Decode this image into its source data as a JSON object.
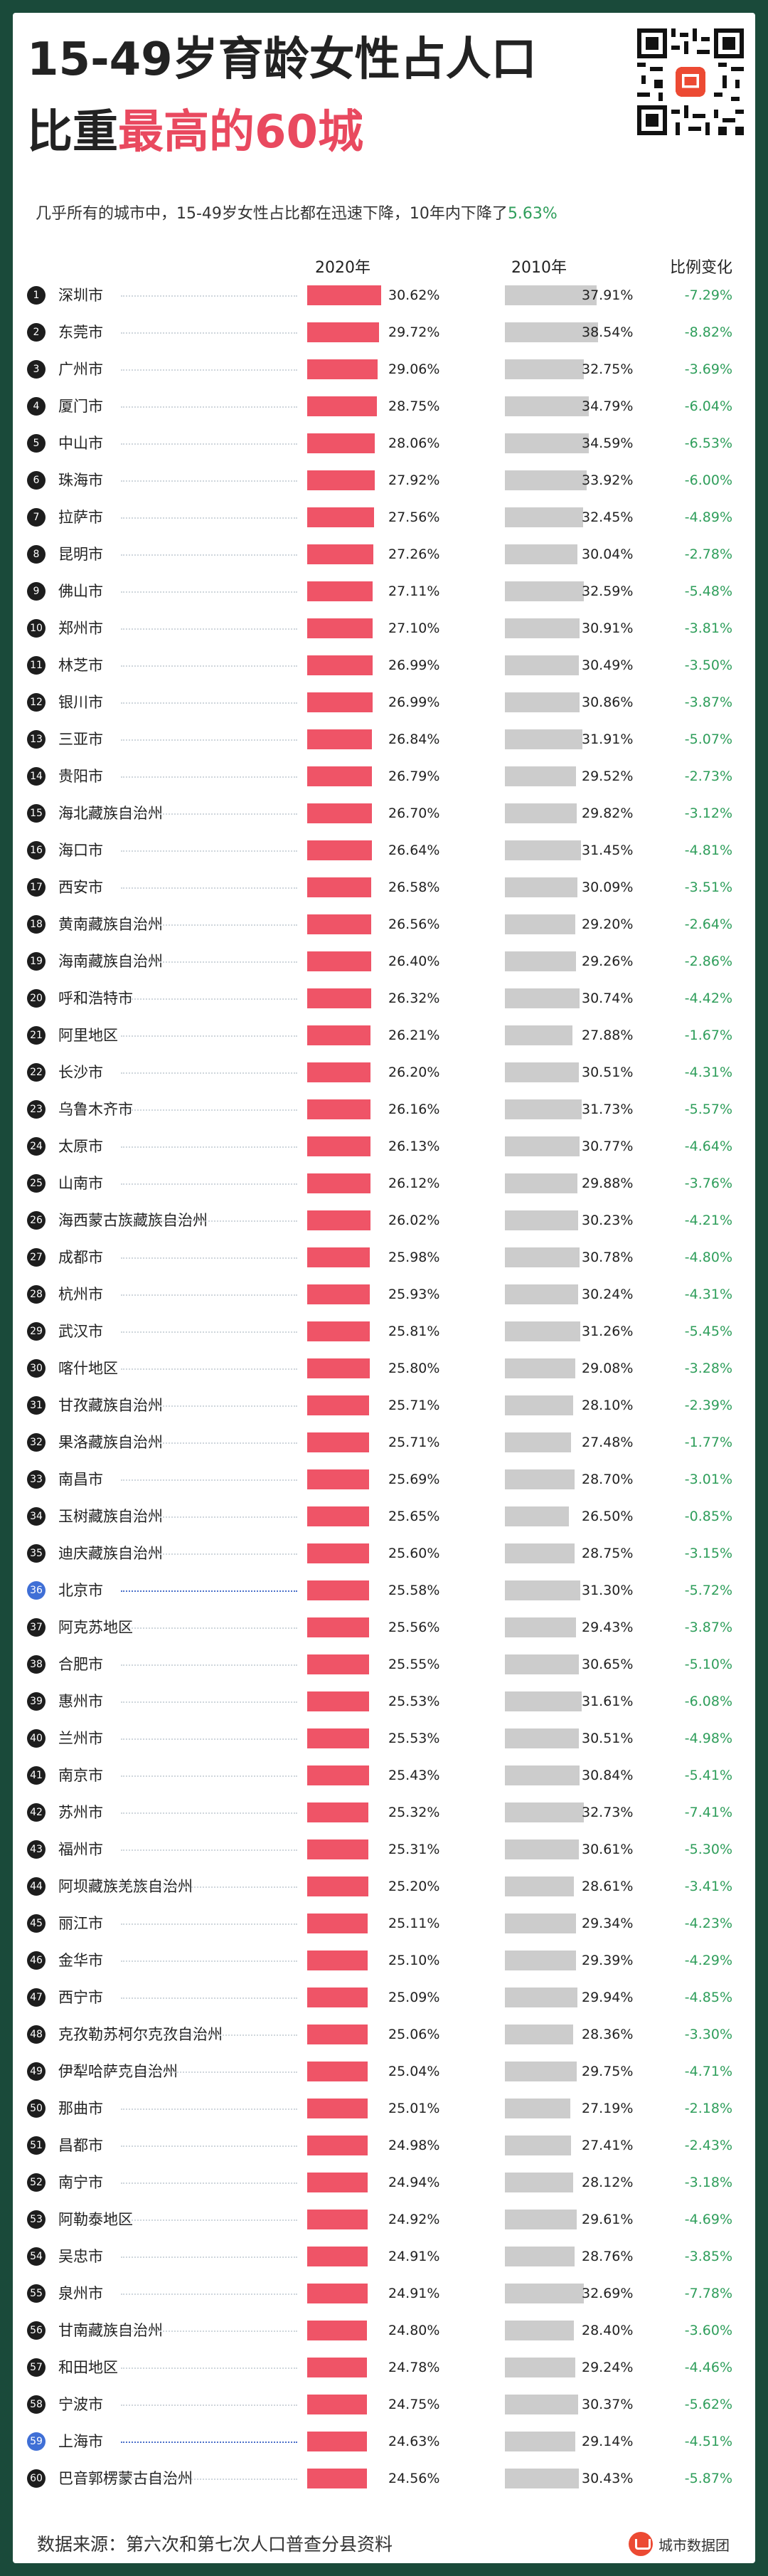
{
  "title_line1": "15-49岁育龄女性占人口",
  "title_line2_plain": "比重",
  "title_line2_highlight": "最高的60城",
  "subtitle_prefix": "几乎所有的城市中，15-49岁女性占比都在迅速下降，10年内下降了",
  "subtitle_value": "5.63%",
  "headers": {
    "col2020": "2020年",
    "col2010": "2010年",
    "change": "比例变化"
  },
  "footer_source": "数据来源：第六次和第七次人口普查分县资料",
  "brand": "城市数据团",
  "colors": {
    "bar2020": "#ef5467",
    "bar2010": "#cccccc",
    "change": "#2f9e5b",
    "title_highlight": "#e9495f",
    "highlight_badge": "#3f6fd6"
  },
  "chart_data": {
    "type": "bar",
    "highlighted_ranks": [
      36,
      59
    ],
    "ylim": [
      0,
      40
    ],
    "categories": [
      "深圳市",
      "东莞市",
      "广州市",
      "厦门市",
      "中山市",
      "珠海市",
      "拉萨市",
      "昆明市",
      "佛山市",
      "郑州市",
      "林芝市",
      "银川市",
      "三亚市",
      "贵阳市",
      "海北藏族自治州",
      "海口市",
      "西安市",
      "黄南藏族自治州",
      "海南藏族自治州",
      "呼和浩特市",
      "阿里地区",
      "长沙市",
      "乌鲁木齐市",
      "太原市",
      "山南市",
      "海西蒙古族藏族自治州",
      "成都市",
      "杭州市",
      "武汉市",
      "喀什地区",
      "甘孜藏族自治州",
      "果洛藏族自治州",
      "南昌市",
      "玉树藏族自治州",
      "迪庆藏族自治州",
      "北京市",
      "阿克苏地区",
      "合肥市",
      "惠州市",
      "兰州市",
      "南京市",
      "苏州市",
      "福州市",
      "阿坝藏族羌族自治州",
      "丽江市",
      "金华市",
      "西宁市",
      "克孜勒苏柯尔克孜自治州",
      "伊犁哈萨克自治州",
      "那曲市",
      "昌都市",
      "南宁市",
      "阿勒泰地区",
      "吴忠市",
      "泉州市",
      "甘南藏族自治州",
      "和田地区",
      "宁波市",
      "上海市",
      "巴音郭楞蒙古自治州"
    ],
    "series": [
      {
        "name": "2020年",
        "values": [
          30.62,
          29.72,
          29.06,
          28.75,
          28.06,
          27.92,
          27.56,
          27.26,
          27.11,
          27.1,
          26.99,
          26.99,
          26.84,
          26.79,
          26.7,
          26.64,
          26.58,
          26.56,
          26.4,
          26.32,
          26.21,
          26.2,
          26.16,
          26.13,
          26.12,
          26.02,
          25.98,
          25.93,
          25.81,
          25.8,
          25.71,
          25.71,
          25.69,
          25.65,
          25.6,
          25.58,
          25.56,
          25.55,
          25.53,
          25.53,
          25.43,
          25.32,
          25.31,
          25.2,
          25.11,
          25.1,
          25.09,
          25.06,
          25.04,
          25.01,
          24.98,
          24.94,
          24.92,
          24.91,
          24.91,
          24.8,
          24.78,
          24.75,
          24.63,
          24.56
        ]
      },
      {
        "name": "2010年",
        "values": [
          37.91,
          38.54,
          32.75,
          34.79,
          34.59,
          33.92,
          32.45,
          30.04,
          32.59,
          30.91,
          30.49,
          30.86,
          31.91,
          29.52,
          29.82,
          31.45,
          30.09,
          29.2,
          29.26,
          30.74,
          27.88,
          30.51,
          31.73,
          30.77,
          29.88,
          30.23,
          30.78,
          30.24,
          31.26,
          29.08,
          28.1,
          27.48,
          28.7,
          26.5,
          28.75,
          31.3,
          29.43,
          30.65,
          31.61,
          30.51,
          30.84,
          32.73,
          30.61,
          28.61,
          29.34,
          29.39,
          29.94,
          28.36,
          29.75,
          27.19,
          27.41,
          28.12,
          29.61,
          28.76,
          32.69,
          28.4,
          29.24,
          30.37,
          29.14,
          30.43
        ]
      }
    ],
    "change": [
      -7.29,
      -8.82,
      -3.69,
      -6.04,
      -6.53,
      -6.0,
      -4.89,
      -2.78,
      -5.48,
      -3.81,
      -3.5,
      -3.87,
      -5.07,
      -2.73,
      -3.12,
      -4.81,
      -3.51,
      -2.64,
      -2.86,
      -4.42,
      -1.67,
      -4.31,
      -5.57,
      -4.64,
      -3.76,
      -4.21,
      -4.8,
      -4.31,
      -5.45,
      -3.28,
      -2.39,
      -1.77,
      -3.01,
      -0.85,
      -3.15,
      -5.72,
      -3.87,
      -5.1,
      -6.08,
      -4.98,
      -5.41,
      -7.41,
      -5.3,
      -3.41,
      -4.23,
      -4.29,
      -4.85,
      -3.3,
      -4.71,
      -2.18,
      -2.43,
      -3.18,
      -4.69,
      -3.85,
      -7.78,
      -3.6,
      -4.46,
      -5.62,
      -4.51,
      -5.87
    ]
  }
}
